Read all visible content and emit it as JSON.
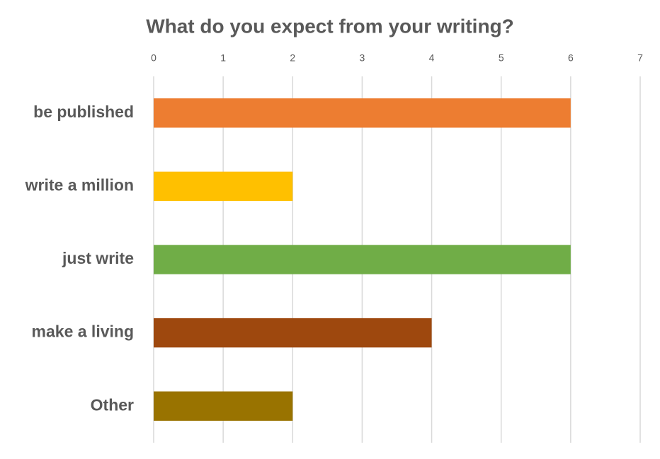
{
  "chart_data": {
    "type": "bar",
    "orientation": "horizontal",
    "title": "What do you expect from your writing?",
    "categories": [
      "be published",
      "write a million",
      "just write",
      "make a living",
      "Other"
    ],
    "values": [
      6,
      2,
      6,
      4,
      2
    ],
    "colors": [
      "#ED7D31",
      "#FFC000",
      "#70AD47",
      "#9E480E",
      "#997300"
    ],
    "xlim": [
      0,
      7
    ],
    "xticks": [
      0,
      1,
      2,
      3,
      4,
      5,
      6,
      7
    ],
    "grid": true,
    "x_axis_position": "top"
  }
}
